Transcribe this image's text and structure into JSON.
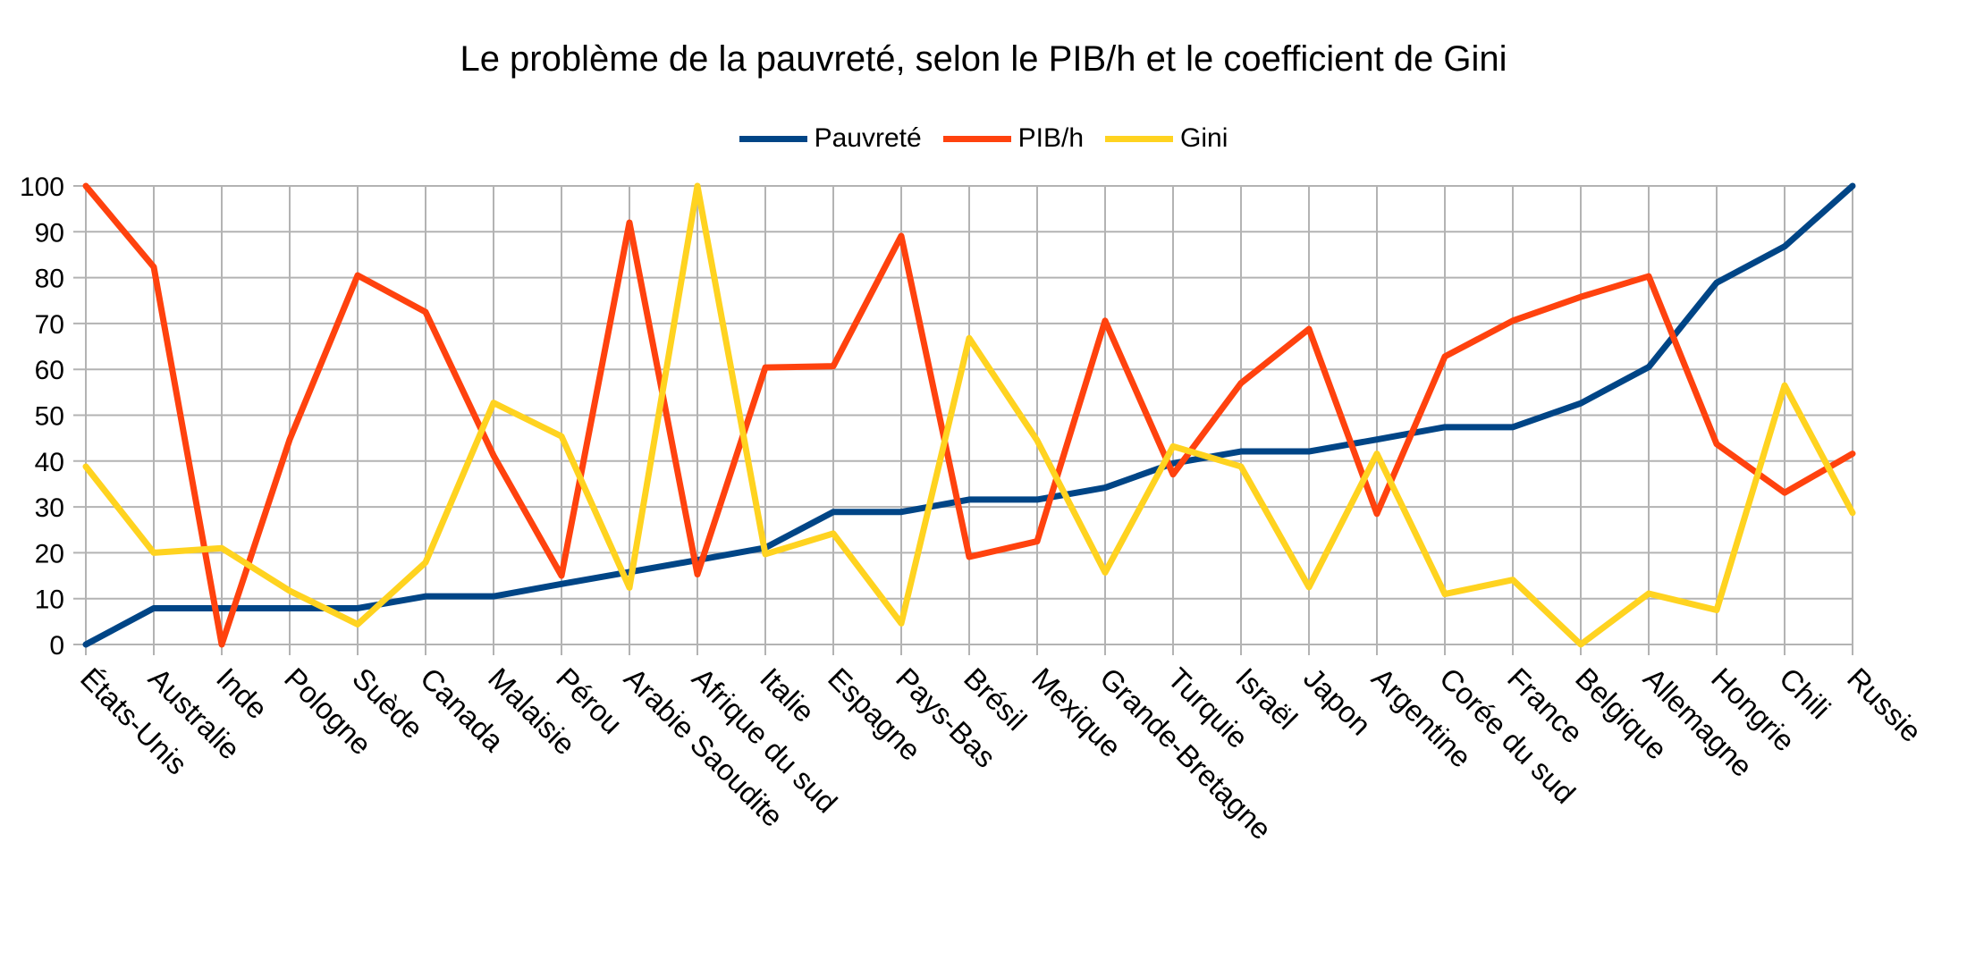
{
  "chart_data": {
    "type": "line",
    "title": "Le problème de la pauvreté, selon le PIB/h et le coefficient de Gini",
    "xlabel": "",
    "ylabel": "",
    "ylim": [
      0,
      100
    ],
    "yticks": [
      0,
      10,
      20,
      30,
      40,
      50,
      60,
      70,
      80,
      90,
      100
    ],
    "grid": "vertical and horizontal",
    "legend_position": "top",
    "categories": [
      "États-Unis",
      "Australie",
      "Inde",
      "Pologne",
      "Suède",
      "Canada",
      "Malaisie",
      "Pérou",
      "Arabie Saoudite",
      "Afrique du sud",
      "Italie",
      "Espagne",
      "Pays-Bas",
      "Brésil",
      "Mexique",
      "Grande-Bretagne",
      "Turquie",
      "Israël",
      "Japon",
      "Argentine",
      "Corée du sud",
      "France",
      "Belgique",
      "Allemagne",
      "Hongrie",
      "Chili",
      "Russie"
    ],
    "series": [
      {
        "name": "Pauvreté",
        "color": "#004586",
        "values": [
          0,
          7.9,
          7.9,
          7.9,
          7.9,
          10.5,
          10.5,
          13.2,
          15.8,
          18.4,
          21.1,
          28.9,
          28.9,
          31.6,
          31.6,
          34.2,
          39.5,
          42.1,
          42.1,
          44.7,
          47.4,
          47.4,
          52.6,
          60.5,
          78.9,
          86.8,
          100
        ]
      },
      {
        "name": "PIB/h",
        "color": "#ff420e",
        "values": [
          100,
          82.3,
          0,
          44.7,
          80.5,
          72.5,
          41.2,
          15.0,
          92.0,
          15.3,
          60.4,
          60.7,
          89.1,
          19.1,
          22.5,
          70.6,
          37.1,
          57.0,
          68.8,
          28.5,
          62.8,
          70.6,
          75.8,
          80.3,
          43.7,
          33.1,
          41.6
        ]
      },
      {
        "name": "Gini",
        "color": "#ffd320",
        "values": [
          38.8,
          20.0,
          21.0,
          11.7,
          4.4,
          17.9,
          52.7,
          45.4,
          12.4,
          100,
          19.7,
          24.2,
          4.6,
          66.8,
          44.5,
          15.7,
          43.2,
          38.8,
          12.5,
          41.6,
          11.0,
          14.1,
          0,
          11.1,
          7.5,
          56.5,
          28.7
        ]
      }
    ]
  }
}
